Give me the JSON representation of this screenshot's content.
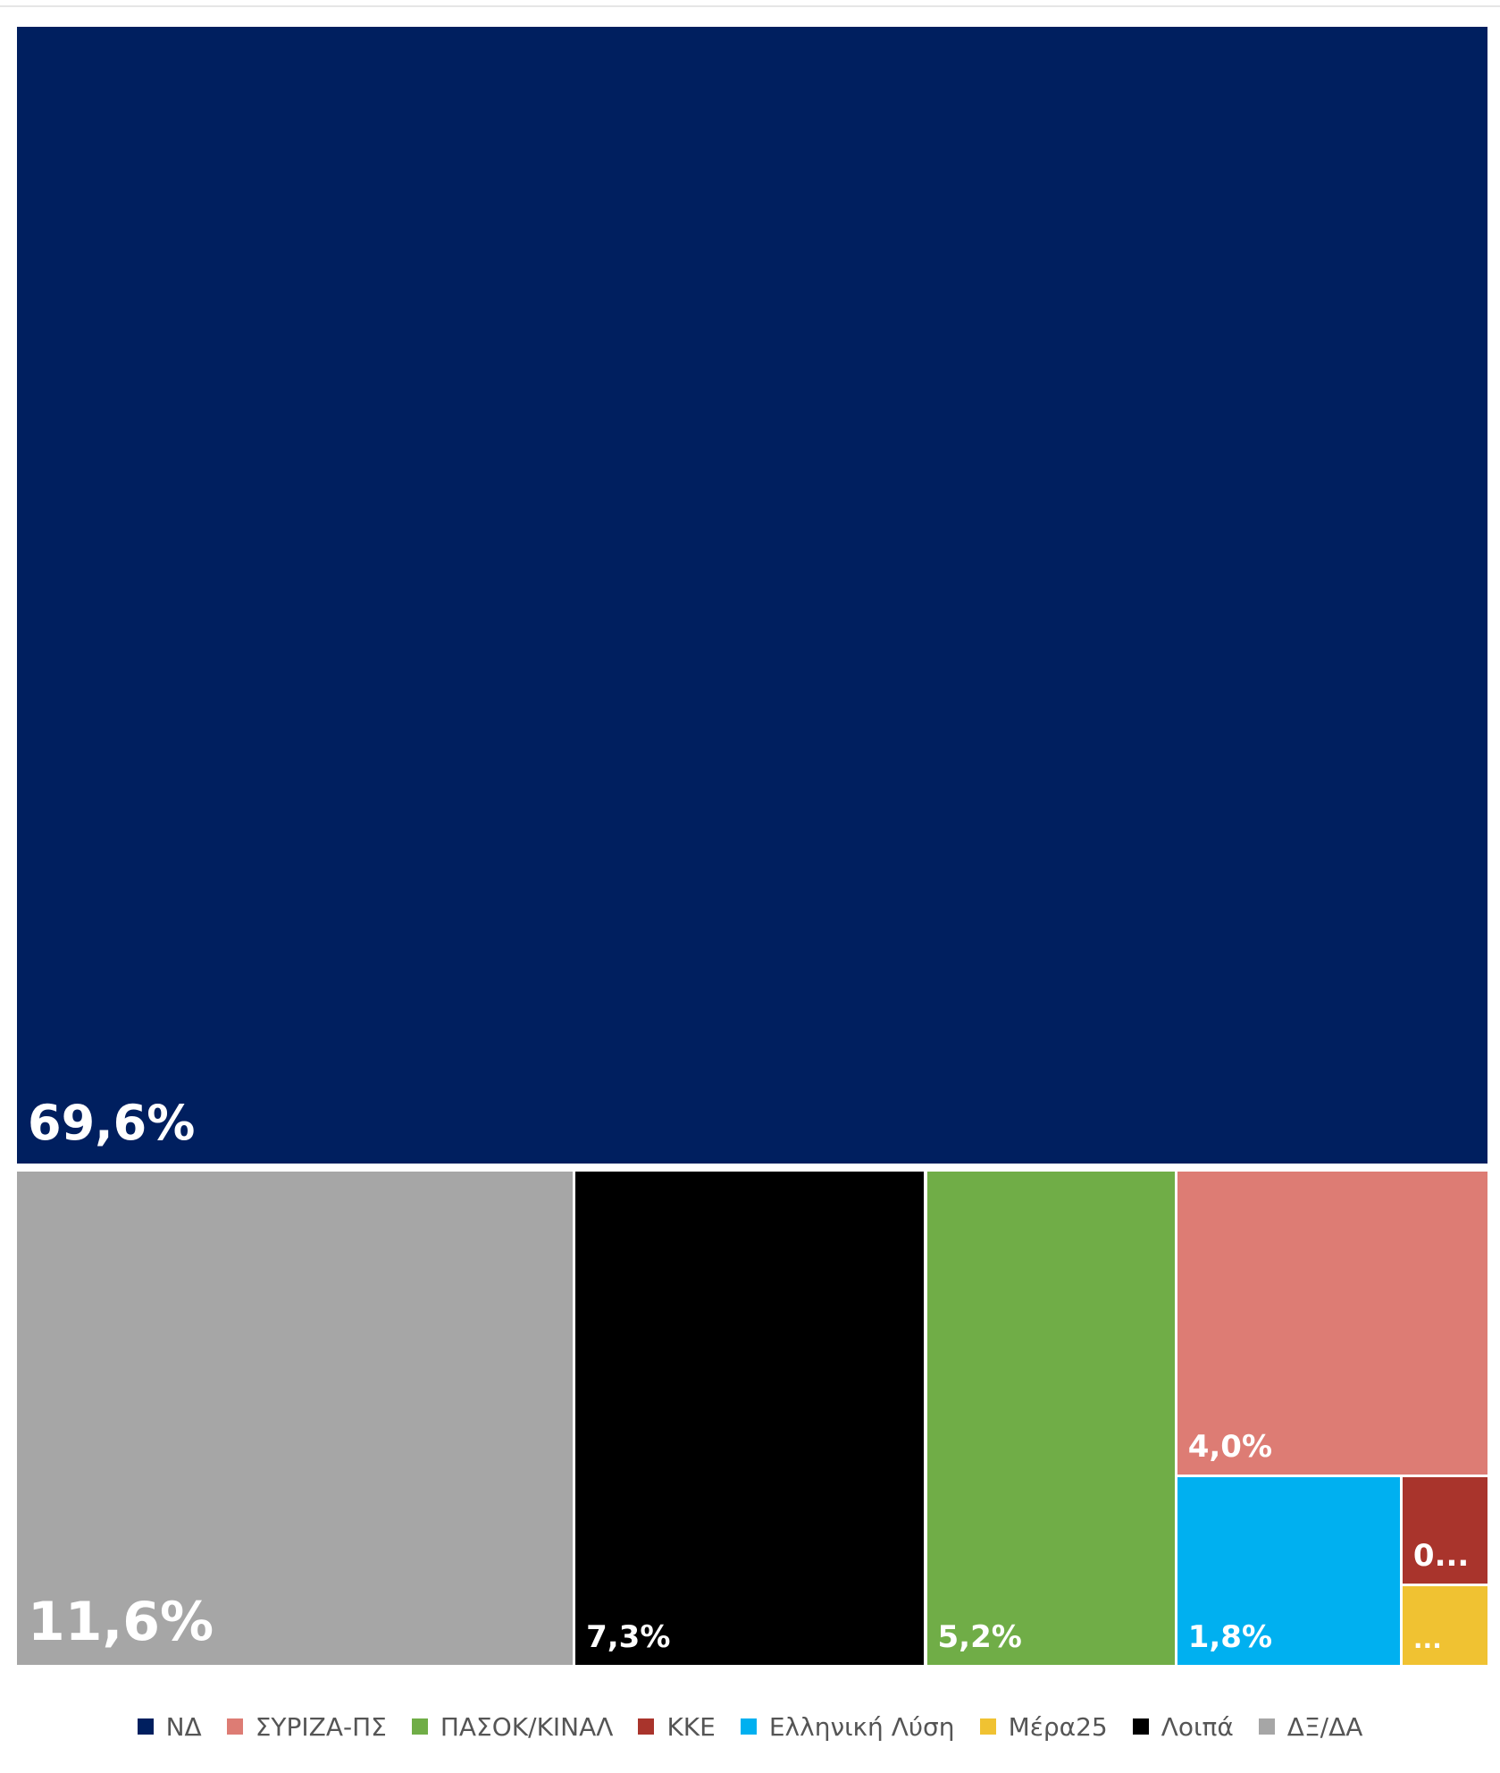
{
  "chart_data": {
    "type": "treemap",
    "items": [
      {
        "name": "ΝΔ",
        "value": 69.6,
        "label": "69,6%",
        "color": "#001f5f",
        "font": 54
      },
      {
        "name": "ΔΞ/ΔΑ",
        "value": 11.6,
        "label": "11,6%",
        "color": "#a6a6a6",
        "font": 60
      },
      {
        "name": "Λοιπά",
        "value": 7.3,
        "label": "7,3%",
        "color": "#000000",
        "font": 34
      },
      {
        "name": "ΠΑΣΟΚ/ΚΙΝΑΛ",
        "value": 5.2,
        "label": "5,2%",
        "color": "#70ad47",
        "font": 34
      },
      {
        "name": "ΣΥΡΙΖΑ-ΠΣ",
        "value": 4.0,
        "label": "4,0%",
        "color": "#dd7c74",
        "font": 34
      },
      {
        "name": "Ελληνική Λύση",
        "value": 1.8,
        "label": "1,8%",
        "color": "#00b0f0",
        "font": 34
      },
      {
        "name": "ΚΚΕ",
        "value": 0.4,
        "label": "0...",
        "color": "#a9342c",
        "font": 34
      },
      {
        "name": "Μέρα25",
        "value": 0.3,
        "label": "...",
        "color": "#f0c232",
        "font": 28
      }
    ],
    "legend": {
      "position": "bottom",
      "order": [
        "ΝΔ",
        "ΣΥΡΙΖΑ-ΠΣ",
        "ΠΑΣΟΚ/ΚΙΝΑΛ",
        "ΚΚΕ",
        "Ελληνική Λύση",
        "Μέρα25",
        "Λοιπά",
        "ΔΞ/ΔΑ"
      ]
    }
  }
}
